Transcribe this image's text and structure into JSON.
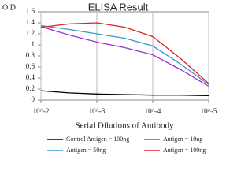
{
  "chart_data": {
    "type": "line",
    "title": "ELISA Result",
    "y_label": "O.D.",
    "x_label": "Serial Dilutions of Antibody",
    "x": [
      0.01,
      0.00316,
      0.001,
      0.000316,
      0.0001,
      3.16e-05,
      1e-05
    ],
    "xlim": [
      0.01,
      1e-05
    ],
    "x_log": true,
    "xticks": [
      {
        "value": 0.01,
        "label": "10^-2"
      },
      {
        "value": 0.001,
        "label": "10^-3"
      },
      {
        "value": 0.0001,
        "label": "10^-4"
      },
      {
        "value": 1e-05,
        "label": "10^-5"
      }
    ],
    "ylim": [
      0,
      1.6
    ],
    "yticks": [
      0,
      0.2,
      0.4,
      0.6,
      0.8,
      1,
      1.2,
      1.4,
      1.6
    ],
    "grid": "x",
    "series": [
      {
        "name": "Control Antigen = 100ng",
        "color": "#000000",
        "values": [
          0.17,
          0.13,
          0.11,
          0.1,
          0.09,
          0.09,
          0.08
        ]
      },
      {
        "name": "Antigen = 10ng",
        "color": "#9933cc",
        "values": [
          1.33,
          1.18,
          1.05,
          0.95,
          0.82,
          0.55,
          0.25
        ]
      },
      {
        "name": "Antigen = 50ng",
        "color": "#3399cc",
        "values": [
          1.35,
          1.28,
          1.2,
          1.12,
          0.98,
          0.65,
          0.28
        ]
      },
      {
        "name": "Antigen = 100ng",
        "color": "#dd2222",
        "values": [
          1.32,
          1.38,
          1.4,
          1.32,
          1.15,
          0.75,
          0.3
        ]
      }
    ]
  }
}
